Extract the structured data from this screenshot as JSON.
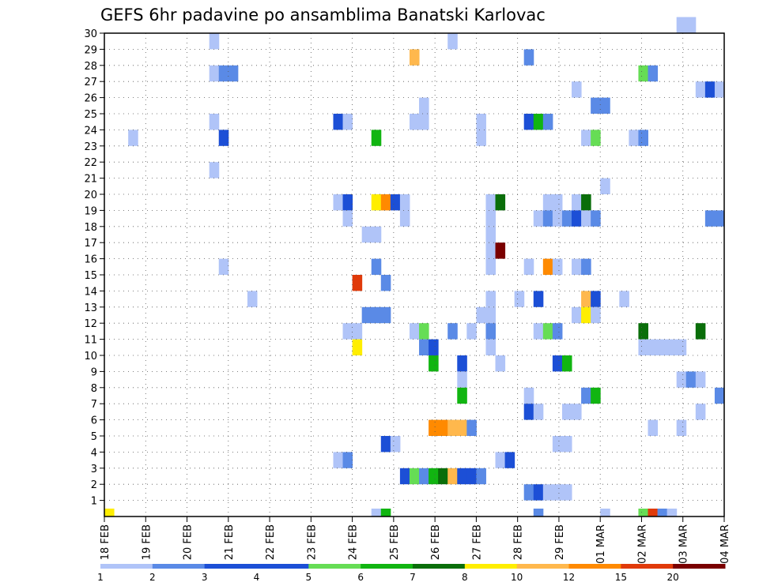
{
  "chart_data": {
    "type": "heatmap",
    "title": "GEFS 6hr padavine po ansamblima Banatski Karlovac",
    "xlabel": "",
    "ylabel": "",
    "x_tick_labels": [
      "18 FEB",
      "19 FEB",
      "20 FEB",
      "21 FEB",
      "22 FEB",
      "23 FEB",
      "24 FEB",
      "25 FEB",
      "26 FEB",
      "27 FEB",
      "28 FEB",
      "29 FEB",
      "01 MAR",
      "02 MAR",
      "03 MAR",
      "04 MAR"
    ],
    "x_range": [
      0,
      60
    ],
    "x_unit": "6h steps",
    "y_tick_labels": [
      "1",
      "2",
      "3",
      "4",
      "5",
      "6",
      "7",
      "8",
      "9",
      "10",
      "11",
      "12",
      "13",
      "14",
      "15",
      "16",
      "17",
      "18",
      "19",
      "20",
      "21",
      "22",
      "23",
      "24",
      "25",
      "26",
      "27",
      "28",
      "29",
      "30"
    ],
    "y_range": [
      0,
      30
    ],
    "grid": true,
    "colorbar": {
      "labels": [
        "1",
        "2",
        "3",
        "4",
        "5",
        "6",
        "7",
        "8",
        "10",
        "12",
        "15",
        "20"
      ],
      "colors": [
        "#b0c4f8",
        "#5a8ae6",
        "#1c4fd6",
        "#1c4fd6",
        "#66dd55",
        "#11b511",
        "#0a6e0a",
        "#ffee00",
        "#ffb84d",
        "#ff8a00",
        "#e03a0a",
        "#7a0000"
      ]
    },
    "cells": [
      {
        "x": 0,
        "m": 0,
        "c": 8
      },
      {
        "x": 2.5,
        "m": 23,
        "c": 1
      },
      {
        "x": 11,
        "m": 29,
        "c": 1
      },
      {
        "x": 11,
        "m": 21,
        "c": 1
      },
      {
        "x": 11,
        "m": 24,
        "c": 1
      },
      {
        "x": 11,
        "m": 27,
        "c": 1
      },
      {
        "x": 12,
        "m": 27,
        "c": 2
      },
      {
        "x": 12,
        "m": 23,
        "c": 3
      },
      {
        "x": 12,
        "m": 15,
        "c": 1
      },
      {
        "x": 13,
        "m": 27,
        "c": 2
      },
      {
        "x": 15,
        "m": 13,
        "c": 1
      },
      {
        "x": 24,
        "m": 24,
        "c": 4
      },
      {
        "x": 24,
        "m": 19,
        "c": 1
      },
      {
        "x": 24,
        "m": 3,
        "c": 1
      },
      {
        "x": 25,
        "m": 24,
        "c": 1
      },
      {
        "x": 25,
        "m": 19,
        "c": 4
      },
      {
        "x": 25,
        "m": 18,
        "c": 1
      },
      {
        "x": 25,
        "m": 11,
        "c": 1
      },
      {
        "x": 25,
        "m": 3,
        "c": 2
      },
      {
        "x": 26,
        "m": 14,
        "c": 11
      },
      {
        "x": 26,
        "m": 11,
        "c": 1
      },
      {
        "x": 26,
        "m": 10,
        "c": 8
      },
      {
        "x": 27,
        "m": 17,
        "c": 1
      },
      {
        "x": 27,
        "m": 12,
        "c": 2
      },
      {
        "x": 28,
        "m": 23,
        "c": 6
      },
      {
        "x": 28,
        "m": 19,
        "c": 8
      },
      {
        "x": 28,
        "m": 17,
        "c": 1
      },
      {
        "x": 28,
        "m": 15,
        "c": 2
      },
      {
        "x": 28,
        "m": 12,
        "c": 2
      },
      {
        "x": 28,
        "m": 0,
        "c": 1
      },
      {
        "x": 29,
        "m": 19,
        "c": 10
      },
      {
        "x": 29,
        "m": 14,
        "c": 2
      },
      {
        "x": 29,
        "m": 12,
        "c": 2
      },
      {
        "x": 29,
        "m": 4,
        "c": 4
      },
      {
        "x": 29,
        "m": 0,
        "c": 6
      },
      {
        "x": 30,
        "m": 19,
        "c": 4
      },
      {
        "x": 30,
        "m": 4,
        "c": 1
      },
      {
        "x": 31,
        "m": 19,
        "c": 1
      },
      {
        "x": 31,
        "m": 18,
        "c": 1
      },
      {
        "x": 31,
        "m": 2,
        "c": 4
      },
      {
        "x": 32,
        "m": 28,
        "c": 9
      },
      {
        "x": 32,
        "m": 24,
        "c": 1
      },
      {
        "x": 32,
        "m": 11,
        "c": 1
      },
      {
        "x": 32,
        "m": 2,
        "c": 5
      },
      {
        "x": 33,
        "m": 25,
        "c": 1
      },
      {
        "x": 33,
        "m": 24,
        "c": 1
      },
      {
        "x": 33,
        "m": 11,
        "c": 5
      },
      {
        "x": 33,
        "m": 10,
        "c": 2
      },
      {
        "x": 33,
        "m": 2,
        "c": 2
      },
      {
        "x": 34,
        "m": 10,
        "c": 4
      },
      {
        "x": 34,
        "m": 9,
        "c": 6
      },
      {
        "x": 34,
        "m": 5,
        "c": 10
      },
      {
        "x": 34,
        "m": 2,
        "c": 6
      },
      {
        "x": 35,
        "m": 5,
        "c": 10
      },
      {
        "x": 35,
        "m": 2,
        "c": 7
      },
      {
        "x": 36,
        "m": 29,
        "c": 1
      },
      {
        "x": 36,
        "m": 11,
        "c": 2
      },
      {
        "x": 36,
        "m": 5,
        "c": 9
      },
      {
        "x": 36,
        "m": 2,
        "c": 9
      },
      {
        "x": 37,
        "m": 9,
        "c": 4
      },
      {
        "x": 37,
        "m": 8,
        "c": 1
      },
      {
        "x": 37,
        "m": 7,
        "c": 6
      },
      {
        "x": 37,
        "m": 5,
        "c": 9
      },
      {
        "x": 37,
        "m": 2,
        "c": 4
      },
      {
        "x": 38,
        "m": 11,
        "c": 1
      },
      {
        "x": 38,
        "m": 5,
        "c": 2
      },
      {
        "x": 38,
        "m": 2,
        "c": 4
      },
      {
        "x": 39,
        "m": 24,
        "c": 1
      },
      {
        "x": 39,
        "m": 23,
        "c": 1
      },
      {
        "x": 39,
        "m": 12,
        "c": 1
      },
      {
        "x": 39,
        "m": 2,
        "c": 2
      },
      {
        "x": 40,
        "m": 19,
        "c": 1
      },
      {
        "x": 40,
        "m": 18,
        "c": 1
      },
      {
        "x": 40,
        "m": 17,
        "c": 1
      },
      {
        "x": 40,
        "m": 16,
        "c": 1
      },
      {
        "x": 40,
        "m": 15,
        "c": 1
      },
      {
        "x": 40,
        "m": 13,
        "c": 1
      },
      {
        "x": 40,
        "m": 12,
        "c": 1
      },
      {
        "x": 40,
        "m": 11,
        "c": 2
      },
      {
        "x": 40,
        "m": 10,
        "c": 1
      },
      {
        "x": 41,
        "m": 19,
        "c": 7
      },
      {
        "x": 41,
        "m": 16,
        "c": 12
      },
      {
        "x": 41,
        "m": 9,
        "c": 1
      },
      {
        "x": 41,
        "m": 3,
        "c": 1
      },
      {
        "x": 42,
        "m": 3,
        "c": 4
      },
      {
        "x": 43,
        "m": 13,
        "c": 1
      },
      {
        "x": 44,
        "m": 28,
        "c": 2
      },
      {
        "x": 44,
        "m": 24,
        "c": 4
      },
      {
        "x": 44,
        "m": 15,
        "c": 1
      },
      {
        "x": 44,
        "m": 7,
        "c": 1
      },
      {
        "x": 44,
        "m": 6,
        "c": 3
      },
      {
        "x": 44,
        "m": 1,
        "c": 2
      },
      {
        "x": 45,
        "m": 24,
        "c": 6
      },
      {
        "x": 45,
        "m": 18,
        "c": 1
      },
      {
        "x": 45,
        "m": 13,
        "c": 4
      },
      {
        "x": 45,
        "m": 11,
        "c": 1
      },
      {
        "x": 45,
        "m": 6,
        "c": 1
      },
      {
        "x": 45,
        "m": 1,
        "c": 4
      },
      {
        "x": 45,
        "m": 0,
        "c": 2
      },
      {
        "x": 46,
        "m": 24,
        "c": 2
      },
      {
        "x": 46,
        "m": 19,
        "c": 1
      },
      {
        "x": 46,
        "m": 18,
        "c": 2
      },
      {
        "x": 46,
        "m": 15,
        "c": 10
      },
      {
        "x": 46,
        "m": 11,
        "c": 5
      },
      {
        "x": 46,
        "m": 1,
        "c": 1
      },
      {
        "x": 47,
        "m": 19,
        "c": 1
      },
      {
        "x": 47,
        "m": 18,
        "c": 1
      },
      {
        "x": 47,
        "m": 15,
        "c": 1
      },
      {
        "x": 47,
        "m": 11,
        "c": 2
      },
      {
        "x": 47,
        "m": 9,
        "c": 4
      },
      {
        "x": 47,
        "m": 4,
        "c": 1
      },
      {
        "x": 47,
        "m": 1,
        "c": 1
      },
      {
        "x": 48,
        "m": 18,
        "c": 2
      },
      {
        "x": 48,
        "m": 9,
        "c": 6
      },
      {
        "x": 48,
        "m": 6,
        "c": 1
      },
      {
        "x": 48,
        "m": 4,
        "c": 1
      },
      {
        "x": 48,
        "m": 1,
        "c": 1
      },
      {
        "x": 49,
        "m": 26,
        "c": 1
      },
      {
        "x": 49,
        "m": 19,
        "c": 1
      },
      {
        "x": 49,
        "m": 18,
        "c": 4
      },
      {
        "x": 49,
        "m": 15,
        "c": 1
      },
      {
        "x": 49,
        "m": 12,
        "c": 1
      },
      {
        "x": 49,
        "m": 6,
        "c": 1
      },
      {
        "x": 50,
        "m": 23,
        "c": 1
      },
      {
        "x": 50,
        "m": 19,
        "c": 7
      },
      {
        "x": 50,
        "m": 18,
        "c": 1
      },
      {
        "x": 50,
        "m": 15,
        "c": 2
      },
      {
        "x": 50,
        "m": 13,
        "c": 9
      },
      {
        "x": 50,
        "m": 12,
        "c": 8
      },
      {
        "x": 50,
        "m": 7,
        "c": 2
      },
      {
        "x": 51,
        "m": 25,
        "c": 2
      },
      {
        "x": 51,
        "m": 23,
        "c": 5
      },
      {
        "x": 51,
        "m": 18,
        "c": 2
      },
      {
        "x": 51,
        "m": 13,
        "c": 4
      },
      {
        "x": 51,
        "m": 12,
        "c": 1
      },
      {
        "x": 51,
        "m": 7,
        "c": 6
      },
      {
        "x": 52,
        "m": 25,
        "c": 2
      },
      {
        "x": 52,
        "m": 20,
        "c": 1
      },
      {
        "x": 52,
        "m": 0,
        "c": 1
      },
      {
        "x": 54,
        "m": 13,
        "c": 1
      },
      {
        "x": 55,
        "m": 23,
        "c": 1
      },
      {
        "x": 56,
        "m": 23,
        "c": 2
      },
      {
        "x": 56,
        "m": 27,
        "c": 5
      },
      {
        "x": 56,
        "m": 11,
        "c": 7
      },
      {
        "x": 56,
        "m": 10,
        "c": 1
      },
      {
        "x": 56,
        "m": 0,
        "c": 5
      },
      {
        "x": 57,
        "m": 27,
        "c": 2
      },
      {
        "x": 57,
        "m": 10,
        "c": 1
      },
      {
        "x": 57,
        "m": 5,
        "c": 1
      },
      {
        "x": 57,
        "m": 0,
        "c": 11
      },
      {
        "x": 58,
        "m": 10,
        "c": 1
      },
      {
        "x": 58,
        "m": 0,
        "c": 2
      },
      {
        "x": 59,
        "m": 10,
        "c": 1
      },
      {
        "x": 59,
        "m": 0,
        "c": 1
      },
      {
        "x": 60,
        "m": 30,
        "c": 1
      },
      {
        "x": 60,
        "m": 10,
        "c": 1
      },
      {
        "x": 60,
        "m": 8,
        "c": 1
      },
      {
        "x": 60,
        "m": 5,
        "c": 1
      },
      {
        "x": 61,
        "m": 30,
        "c": 1
      },
      {
        "x": 61,
        "m": 8,
        "c": 2
      },
      {
        "x": 62,
        "m": 26,
        "c": 1
      },
      {
        "x": 62,
        "m": 11,
        "c": 7
      },
      {
        "x": 62,
        "m": 8,
        "c": 1
      },
      {
        "x": 62,
        "m": 6,
        "c": 1
      },
      {
        "x": 63,
        "m": 26,
        "c": 4
      },
      {
        "x": 63,
        "m": 18,
        "c": 2
      },
      {
        "x": 64,
        "m": 26,
        "c": 1
      },
      {
        "x": 64,
        "m": 18,
        "c": 2
      },
      {
        "x": 64,
        "m": 7,
        "c": 2
      }
    ]
  }
}
